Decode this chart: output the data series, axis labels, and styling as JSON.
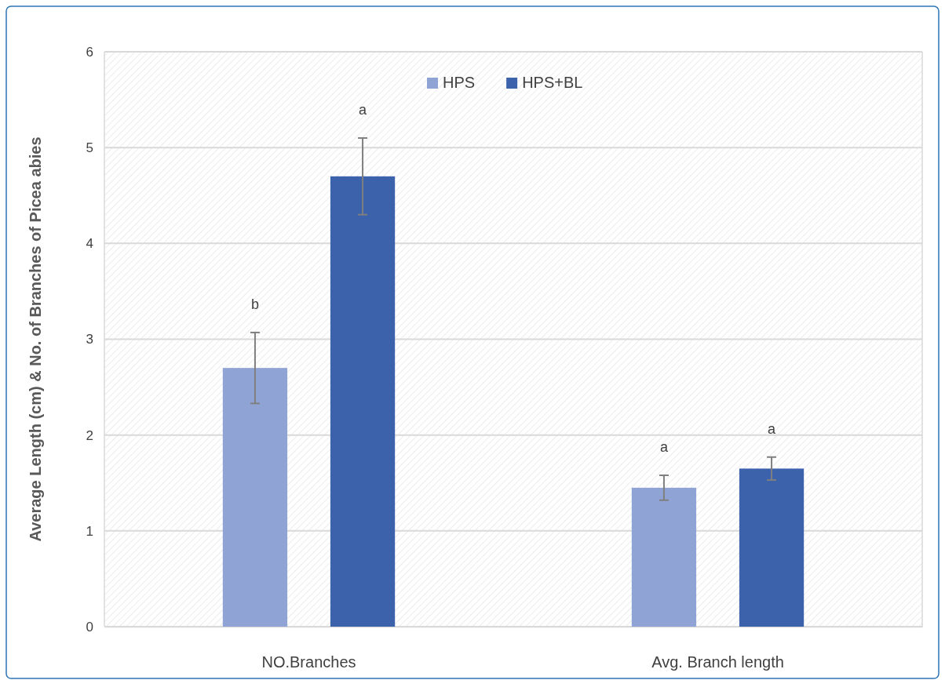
{
  "chart_data": {
    "type": "bar",
    "ylabel": "Average Length (cm) & No. of Branches of Picea abies",
    "categories": [
      "NO.Branches",
      "Avg. Branch length"
    ],
    "series": [
      {
        "name": "HPS",
        "color": "#8fa4d4",
        "values": [
          2.7,
          1.45
        ],
        "errors": [
          0.37,
          0.13
        ]
      },
      {
        "name": "HPS+BL",
        "color": "#3b62ab",
        "values": [
          4.7,
          1.65
        ],
        "errors": [
          0.4,
          0.12
        ]
      }
    ],
    "ylim": [
      0,
      6
    ],
    "yticks": [
      0,
      1,
      2,
      3,
      4,
      5,
      6
    ],
    "grid": true,
    "legend": "top",
    "annotations": [
      "b",
      "a",
      "a",
      "a"
    ]
  }
}
